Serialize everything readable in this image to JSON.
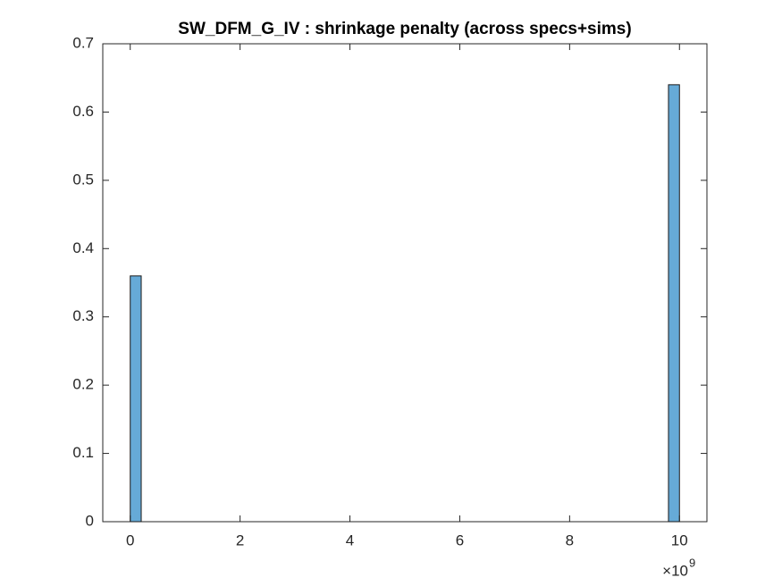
{
  "chart_data": {
    "type": "histogram",
    "title": "SW_DFM_G_IV : shrinkage penalty (across specs+sims)",
    "bins": [
      0,
      200000000,
      400000000,
      600000000,
      800000000,
      1000000000,
      1200000000,
      1400000000,
      1600000000,
      1800000000,
      2000000000,
      2200000000,
      2400000000,
      2600000000,
      2800000000,
      3000000000,
      3200000000,
      3400000000,
      3600000000,
      3800000000,
      4000000000,
      4200000000,
      4400000000,
      4600000000,
      4800000000,
      5000000000,
      5200000000,
      5400000000,
      5600000000,
      5800000000,
      6000000000,
      6200000000,
      6400000000,
      6600000000,
      6800000000,
      7000000000,
      7200000000,
      7400000000,
      7600000000,
      7800000000,
      8000000000,
      8200000000,
      8400000000,
      8600000000,
      8800000000,
      9000000000,
      9200000000,
      9400000000,
      9600000000,
      9800000000,
      10000000000
    ],
    "values": [
      0.36,
      0,
      0,
      0,
      0,
      0,
      0,
      0,
      0,
      0,
      0,
      0,
      0,
      0,
      0,
      0,
      0,
      0,
      0,
      0,
      0,
      0,
      0,
      0,
      0,
      0,
      0,
      0,
      0,
      0,
      0,
      0,
      0,
      0,
      0,
      0,
      0,
      0,
      0,
      0,
      0,
      0,
      0,
      0,
      0,
      0,
      0,
      0,
      0,
      0.64
    ],
    "color": "#66aad7",
    "xlim": [
      -500000000,
      10500000000
    ],
    "xticks": [
      {
        "value": 0,
        "label": "0"
      },
      {
        "value": 2000000000,
        "label": "2"
      },
      {
        "value": 4000000000,
        "label": "4"
      },
      {
        "value": 6000000000,
        "label": "6"
      },
      {
        "value": 8000000000,
        "label": "8"
      },
      {
        "value": 10000000000,
        "label": "10"
      }
    ],
    "x_exponent": {
      "base": "×10",
      "power": "9"
    },
    "ylim": [
      0,
      0.7
    ],
    "yticks": [
      0,
      0.1,
      0.2,
      0.3,
      0.4,
      0.5,
      0.6,
      0.7
    ]
  }
}
